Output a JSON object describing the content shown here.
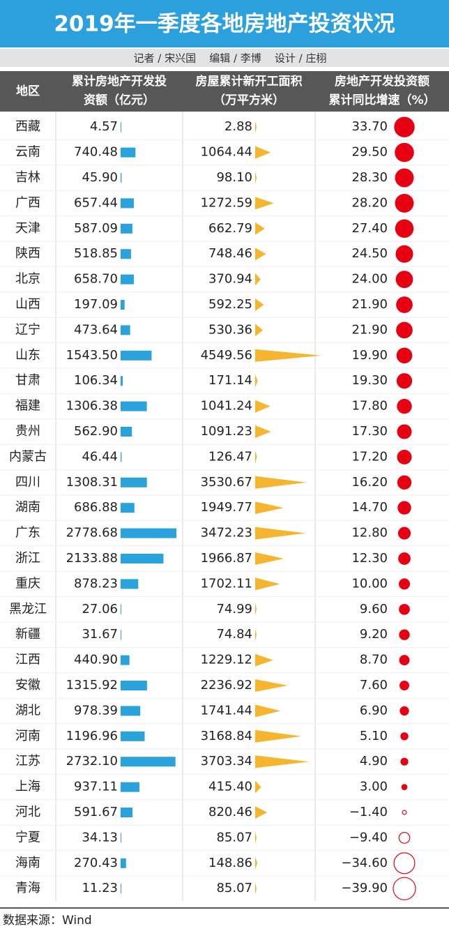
{
  "header": {
    "title": "2019年一季度各地房地产投资状况",
    "credits": "记者 / 宋兴国    编辑 / 李博    设计 / 庄栩"
  },
  "table": {
    "columns": [
      [
        "地区"
      ],
      [
        "累计房地产开发投",
        "资额（亿元）"
      ],
      [
        "房屋累计新开工面积",
        "（万平方米）"
      ],
      [
        "房地产开发投资额",
        "累计同比增速（%）"
      ]
    ],
    "rows": [
      [
        "西藏",
        "4.57",
        "2.88",
        "33.70"
      ],
      [
        "云南",
        "740.48",
        "1064.44",
        "29.50"
      ],
      [
        "吉林",
        "45.90",
        "98.10",
        "28.30"
      ],
      [
        "广西",
        "657.44",
        "1272.59",
        "28.20"
      ],
      [
        "天津",
        "587.09",
        "662.79",
        "27.40"
      ],
      [
        "陕西",
        "518.85",
        "748.46",
        "24.50"
      ],
      [
        "北京",
        "658.70",
        "370.94",
        "24.00"
      ],
      [
        "山西",
        "197.09",
        "592.25",
        "21.90"
      ],
      [
        "辽宁",
        "473.64",
        "530.36",
        "21.90"
      ],
      [
        "山东",
        "1543.50",
        "4549.56",
        "19.90"
      ],
      [
        "甘肃",
        "106.34",
        "171.14",
        "19.30"
      ],
      [
        "福建",
        "1306.38",
        "1041.24",
        "17.80"
      ],
      [
        "贵州",
        "562.90",
        "1091.23",
        "17.30"
      ],
      [
        "内蒙古",
        "46.44",
        "126.47",
        "17.20"
      ],
      [
        "四川",
        "1308.31",
        "3530.67",
        "16.20"
      ],
      [
        "湖南",
        "686.88",
        "1949.77",
        "14.70"
      ],
      [
        "广东",
        "2778.68",
        "3472.23",
        "12.80"
      ],
      [
        "浙江",
        "2133.88",
        "1966.87",
        "12.30"
      ],
      [
        "重庆",
        "878.23",
        "1702.11",
        "10.00"
      ],
      [
        "黑龙江",
        "27.06",
        "74.99",
        "9.60"
      ],
      [
        "新疆",
        "31.67",
        "74.84",
        "9.20"
      ],
      [
        "江西",
        "440.90",
        "1229.12",
        "8.70"
      ],
      [
        "安徽",
        "1315.92",
        "2236.92",
        "7.60"
      ],
      [
        "湖北",
        "978.39",
        "1741.44",
        "6.90"
      ],
      [
        "河南",
        "1196.96",
        "3168.84",
        "5.10"
      ],
      [
        "江苏",
        "2732.10",
        "3703.34",
        "4.90"
      ],
      [
        "上海",
        "937.11",
        "415.40",
        "3.00"
      ],
      [
        "河北",
        "591.67",
        "820.46",
        "−1.40"
      ],
      [
        "宁夏",
        "34.13",
        "85.07",
        "−9.40"
      ],
      [
        "海南",
        "270.43",
        "148.86",
        "−34.60"
      ],
      [
        "青海",
        "11.23",
        "85.07",
        "−39.90"
      ]
    ]
  },
  "footer": {
    "source": "数据来源：Wind"
  }
}
